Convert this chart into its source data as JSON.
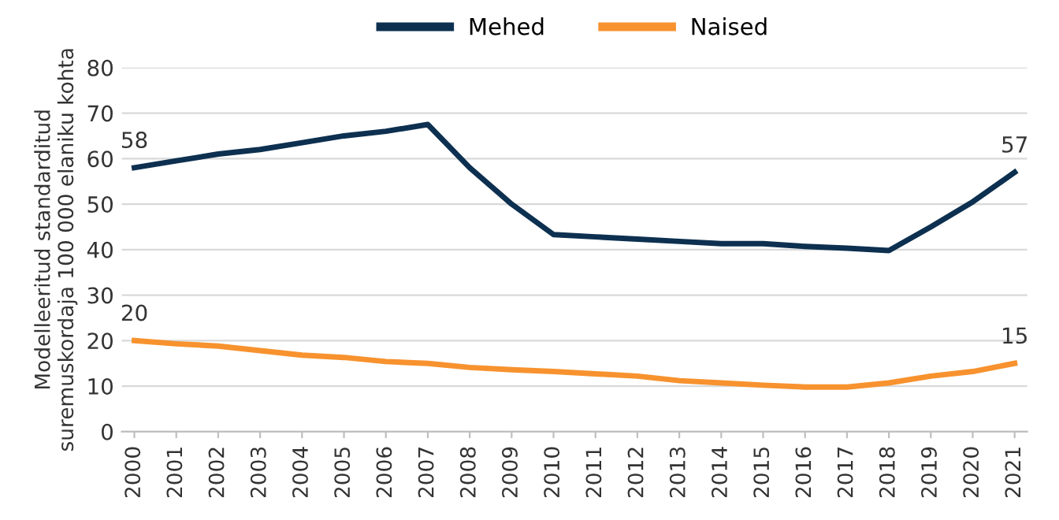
{
  "chart_data": {
    "type": "line",
    "ylabel": "Modelleeritud standarditud\nsuremuskordaja 100 000 elaniku kohta",
    "categories": [
      "2000",
      "2001",
      "2002",
      "2003",
      "2004",
      "2005",
      "2006",
      "2007",
      "2008",
      "2009",
      "2010",
      "2011",
      "2012",
      "2013",
      "2014",
      "2015",
      "2016",
      "2017",
      "2018",
      "2019",
      "2020",
      "2021"
    ],
    "series": [
      {
        "name": "Mehed",
        "color": "#0d3050",
        "values": [
          58,
          59.5,
          61,
          62,
          63.5,
          65,
          66,
          67.5,
          58,
          50,
          43.3,
          42.8,
          42.3,
          41.8,
          41.3,
          41.3,
          40.7,
          40.3,
          39.8,
          45,
          50.5,
          57
        ],
        "value_labels": [
          "58",
          null,
          null,
          null,
          null,
          null,
          null,
          null,
          null,
          null,
          null,
          null,
          null,
          null,
          null,
          null,
          null,
          null,
          null,
          null,
          null,
          "57"
        ]
      },
      {
        "name": "Naised",
        "color": "#f7922e",
        "values": [
          20,
          19.3,
          18.8,
          17.8,
          16.8,
          16.3,
          15.4,
          15,
          14.1,
          13.6,
          13.2,
          12.7,
          12.2,
          11.2,
          10.7,
          10.2,
          9.8,
          9.8,
          10.7,
          12.2,
          13.2,
          15
        ],
        "value_labels": [
          "20",
          null,
          null,
          null,
          null,
          null,
          null,
          null,
          null,
          null,
          null,
          null,
          null,
          null,
          null,
          null,
          null,
          null,
          null,
          null,
          null,
          "15"
        ]
      }
    ],
    "ylim": [
      0,
      80
    ],
    "yticks": [
      0,
      10,
      20,
      30,
      40,
      50,
      60,
      70,
      80
    ],
    "grid": "y",
    "legend": "top",
    "marker": "none",
    "line_style": "solid"
  }
}
